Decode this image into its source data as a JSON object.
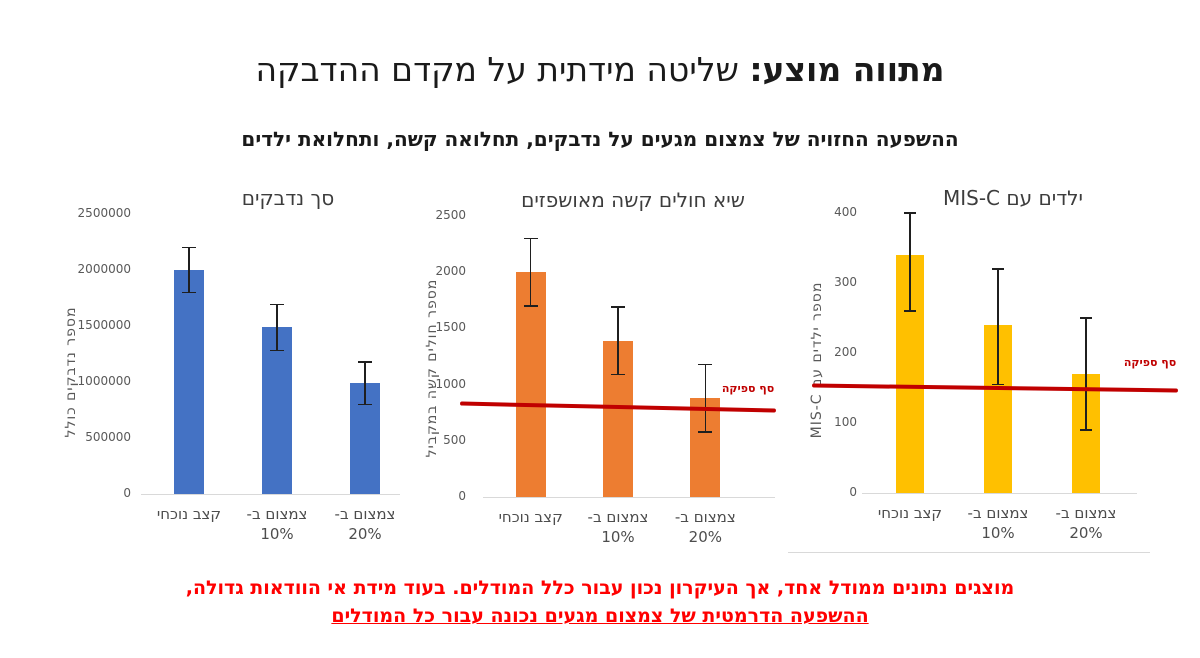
{
  "slide": {
    "title": {
      "emphasis": "מתווה מוצע:",
      "rest": " שליטה מידתית על מקדם ההדבקה"
    },
    "subtitle": "ההשפעה החזויה של צמצום מגעים על נדבקים, תחלואה קשה, ותחלואת ילדים",
    "footer": {
      "line1": "מוצגים נתונים ממודל אחד, אך העיקרון נכון עבור כלל המודלים. בעוד מידת אי הוודאות גדולה,",
      "line2": "ההשפעה הדרמטית של צמצום מגעים נכונה עבור כל המודלים",
      "color": "#ff0000"
    }
  },
  "chart_data": [
    {
      "type": "bar",
      "title": "סך נדבקים",
      "ylabel": "מספר נדבקים כולל",
      "categories": [
        "קצב נוכחי",
        "צמצום ב-\n10%",
        "צמצום ב-\n20%"
      ],
      "values": [
        2000000,
        1490000,
        990000
      ],
      "error_low": [
        1800000,
        1280000,
        800000
      ],
      "error_high": [
        2200000,
        1690000,
        1180000
      ],
      "ylim": [
        0,
        2500000
      ],
      "ytick_step": 500000,
      "grid": false,
      "legend": false,
      "bar_color": "#4472C4",
      "error_color": "#1f1f1f",
      "threshold": null
    },
    {
      "type": "bar",
      "title": "שיא חולים קשה מאושפזים",
      "ylabel": "מספר חולים קשה במקביל",
      "categories": [
        "קצב נוכחי",
        "צמצום ב-\n10%",
        "צמצום ב-\n20%"
      ],
      "values": [
        2000,
        1390,
        880
      ],
      "error_low": [
        1700,
        1090,
        580
      ],
      "error_high": [
        2300,
        1690,
        1180
      ],
      "ylim": [
        0,
        2500
      ],
      "ytick_step": 500,
      "grid": false,
      "legend": false,
      "bar_color": "#ED7D31",
      "error_color": "#1f1f1f",
      "threshold": {
        "value": 800,
        "label": "סף ספיקה",
        "color": "#C00000"
      }
    },
    {
      "type": "bar",
      "title": "ילדים עם MIS-C",
      "ylabel": "מספר ילדים עם MIS-C",
      "categories": [
        "קצב נוכחי",
        "צמצום ב-\n10%",
        "צמצום ב-\n20%"
      ],
      "values": [
        340,
        240,
        170
      ],
      "error_low": [
        260,
        155,
        90
      ],
      "error_high": [
        400,
        320,
        250
      ],
      "ylim": [
        0,
        400
      ],
      "ytick_step": 100,
      "grid": false,
      "legend": false,
      "bar_color": "#FFC000",
      "error_color": "#1f1f1f",
      "threshold": {
        "value": 150,
        "label": "סף ספיקה",
        "color": "#C00000"
      }
    }
  ]
}
